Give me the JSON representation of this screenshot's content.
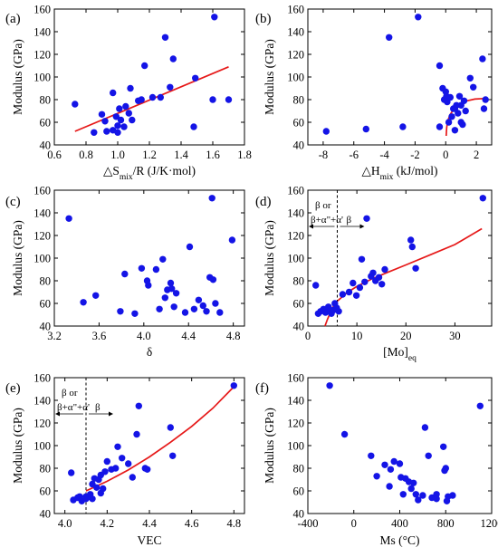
{
  "chart_data": [
    {
      "id": "a",
      "type": "scatter",
      "letter": "(a)",
      "xlabel": {
        "pre": "△S",
        "sub": "mix",
        "post": "/R (J/K·mol)"
      },
      "ylabel": "Modulus (GPa)",
      "xlim": [
        0.6,
        1.8
      ],
      "ylim": [
        40,
        160
      ],
      "xticks": [
        0.6,
        0.8,
        1.0,
        1.2,
        1.4,
        1.6,
        1.8
      ],
      "xtick_labels": [
        "0.6",
        "0.8",
        "1.0",
        "1.2",
        "1.4",
        "1.6",
        "1.8"
      ],
      "yticks": [
        40,
        60,
        80,
        100,
        120,
        140,
        160
      ],
      "ytick_labels": [
        "40",
        "60",
        "80",
        "100",
        "120",
        "140",
        "160"
      ],
      "points": [
        [
          0.73,
          76
        ],
        [
          0.85,
          51
        ],
        [
          0.9,
          67
        ],
        [
          0.92,
          61
        ],
        [
          0.93,
          52
        ],
        [
          0.97,
          86
        ],
        [
          0.97,
          53
        ],
        [
          0.99,
          65
        ],
        [
          1.0,
          57
        ],
        [
          1.0,
          51
        ],
        [
          1.01,
          72
        ],
        [
          1.02,
          62
        ],
        [
          1.04,
          56
        ],
        [
          1.05,
          74
        ],
        [
          1.07,
          68
        ],
        [
          1.08,
          90
        ],
        [
          1.09,
          62
        ],
        [
          1.13,
          79
        ],
        [
          1.15,
          80
        ],
        [
          1.17,
          110
        ],
        [
          1.22,
          82
        ],
        [
          1.27,
          82
        ],
        [
          1.3,
          135
        ],
        [
          1.33,
          91
        ],
        [
          1.35,
          116
        ],
        [
          1.48,
          56
        ],
        [
          1.49,
          99
        ],
        [
          1.6,
          80
        ],
        [
          1.61,
          153
        ],
        [
          1.7,
          80
        ]
      ],
      "fit": {
        "kind": "line",
        "points": [
          [
            0.73,
            52
          ],
          [
            1.7,
            109
          ]
        ]
      }
    },
    {
      "id": "b",
      "type": "scatter",
      "letter": "(b)",
      "xlabel": {
        "pre": "△H",
        "sub": "mix",
        "post": " (kJ/mol)"
      },
      "ylabel": "Modulus (GPa)",
      "xlim": [
        -9,
        3
      ],
      "ylim": [
        40,
        160
      ],
      "xticks": [
        -8,
        -6,
        -4,
        -2,
        0,
        2
      ],
      "xtick_labels": [
        "-8",
        "-6",
        "-4",
        "-2",
        "0",
        "2"
      ],
      "yticks": [
        40,
        60,
        80,
        100,
        120,
        140,
        160
      ],
      "ytick_labels": [
        "40",
        "60",
        "80",
        "100",
        "120",
        "140",
        "160"
      ],
      "points": [
        [
          -7.8,
          52
        ],
        [
          -5.2,
          54
        ],
        [
          -3.7,
          135
        ],
        [
          -2.8,
          56
        ],
        [
          -1.8,
          153
        ],
        [
          -0.4,
          56
        ],
        [
          -0.4,
          110
        ],
        [
          -0.2,
          90
        ],
        [
          -0.1,
          80
        ],
        [
          0,
          87
        ],
        [
          0.05,
          83
        ],
        [
          0.1,
          78
        ],
        [
          0.2,
          60
        ],
        [
          0.3,
          82
        ],
        [
          0.4,
          65
        ],
        [
          0.5,
          72
        ],
        [
          0.6,
          53
        ],
        [
          0.6,
          72
        ],
        [
          0.7,
          75
        ],
        [
          0.8,
          68
        ],
        [
          0.9,
          83
        ],
        [
          1.0,
          75
        ],
        [
          1.0,
          60
        ],
        [
          1.1,
          58
        ],
        [
          1.2,
          79
        ],
        [
          1.3,
          70
        ],
        [
          1.6,
          99
        ],
        [
          1.8,
          91
        ],
        [
          2.4,
          116
        ],
        [
          2.5,
          72
        ],
        [
          2.6,
          80
        ]
      ],
      "fit": {
        "kind": "curve",
        "points": [
          [
            0.03,
            48
          ],
          [
            0.06,
            55
          ],
          [
            0.12,
            61
          ],
          [
            0.3,
            67
          ],
          [
            0.55,
            72
          ],
          [
            0.9,
            76
          ],
          [
            1.4,
            79
          ],
          [
            1.9,
            80.5
          ],
          [
            2.5,
            81
          ]
        ]
      }
    },
    {
      "id": "c",
      "type": "scatter",
      "letter": "(c)",
      "xlabel": {
        "pre": "δ",
        "sub": "",
        "post": ""
      },
      "ylabel": "Modulus (GPa)",
      "xlim": [
        3.2,
        4.9
      ],
      "ylim": [
        40,
        160
      ],
      "xticks": [
        3.2,
        3.6,
        4.0,
        4.4,
        4.8
      ],
      "xtick_labels": [
        "3.2",
        "3.6",
        "4.0",
        "4.4",
        "4.8"
      ],
      "yticks": [
        40,
        60,
        80,
        100,
        120,
        140,
        160
      ],
      "ytick_labels": [
        "40",
        "60",
        "80",
        "100",
        "120",
        "140",
        "160"
      ],
      "points": [
        [
          3.33,
          135
        ],
        [
          3.46,
          61
        ],
        [
          3.57,
          67
        ],
        [
          3.79,
          53
        ],
        [
          3.83,
          86
        ],
        [
          3.92,
          51
        ],
        [
          3.98,
          91
        ],
        [
          4.03,
          80
        ],
        [
          4.04,
          76
        ],
        [
          4.11,
          90
        ],
        [
          4.14,
          55
        ],
        [
          4.17,
          99
        ],
        [
          4.19,
          65
        ],
        [
          4.21,
          72
        ],
        [
          4.24,
          78
        ],
        [
          4.25,
          73
        ],
        [
          4.27,
          57
        ],
        [
          4.29,
          69
        ],
        [
          4.37,
          52
        ],
        [
          4.41,
          110
        ],
        [
          4.45,
          55
        ],
        [
          4.49,
          63
        ],
        [
          4.53,
          58
        ],
        [
          4.56,
          53
        ],
        [
          4.59,
          83
        ],
        [
          4.61,
          153
        ],
        [
          4.62,
          81
        ],
        [
          4.64,
          60
        ],
        [
          4.68,
          52
        ],
        [
          4.79,
          116
        ]
      ]
    },
    {
      "id": "d",
      "type": "scatter",
      "letter": "(d)",
      "xlabel": {
        "pre": "[Mo]",
        "sub": "eq",
        "post": ""
      },
      "ylabel": "Modulus (GPa)",
      "xlim": [
        0,
        37.5
      ],
      "ylim": [
        40,
        160
      ],
      "xticks": [
        0,
        10,
        20,
        30
      ],
      "xtick_labels": [
        "0",
        "10",
        "20",
        "30"
      ],
      "yticks": [
        40,
        60,
        80,
        100,
        120,
        140,
        160
      ],
      "ytick_labels": [
        "40",
        "60",
        "80",
        "100",
        "120",
        "140",
        "160"
      ],
      "points": [
        [
          1.6,
          76
        ],
        [
          2.1,
          51
        ],
        [
          2.6,
          53
        ],
        [
          3.2,
          55
        ],
        [
          3.6,
          52
        ],
        [
          4.2,
          57
        ],
        [
          4.5,
          53
        ],
        [
          4.8,
          51
        ],
        [
          5.2,
          54
        ],
        [
          5.5,
          60
        ],
        [
          5.9,
          56
        ],
        [
          6.3,
          53
        ],
        [
          7.1,
          68
        ],
        [
          8.4,
          70
        ],
        [
          9.2,
          78
        ],
        [
          9.9,
          67
        ],
        [
          10.6,
          74
        ],
        [
          11.0,
          99
        ],
        [
          11.6,
          79
        ],
        [
          12.0,
          135
        ],
        [
          12.9,
          84
        ],
        [
          13.3,
          87
        ],
        [
          13.8,
          80
        ],
        [
          14.5,
          83
        ],
        [
          15.1,
          77
        ],
        [
          15.7,
          90
        ],
        [
          21.0,
          116
        ],
        [
          21.3,
          110
        ],
        [
          22.0,
          91
        ],
        [
          35.7,
          153
        ]
      ],
      "fit": {
        "kind": "curve",
        "points": [
          [
            3.5,
            40
          ],
          [
            4,
            46
          ],
          [
            5,
            56
          ],
          [
            6,
            62
          ],
          [
            8,
            69.5
          ],
          [
            10,
            75
          ],
          [
            13,
            81.5
          ],
          [
            16,
            87
          ],
          [
            20,
            94
          ],
          [
            25,
            103
          ],
          [
            30,
            112
          ],
          [
            35.5,
            126
          ]
        ]
      },
      "vline": 6.0,
      "annot_left": [
        "β or",
        "β+α\"+α'"
      ],
      "annot_right": "β"
    },
    {
      "id": "e",
      "type": "scatter",
      "letter": "(e)",
      "xlabel": {
        "pre": "VEC",
        "sub": "",
        "post": ""
      },
      "ylabel": "Modulus (GPa)",
      "xlim": [
        3.95,
        4.85
      ],
      "ylim": [
        40,
        160
      ],
      "xticks": [
        4.0,
        4.2,
        4.4,
        4.6,
        4.8
      ],
      "xtick_labels": [
        "4.0",
        "4.2",
        "4.4",
        "4.6",
        "4.8"
      ],
      "yticks": [
        40,
        60,
        80,
        100,
        120,
        140,
        160
      ],
      "ytick_labels": [
        "40",
        "60",
        "80",
        "100",
        "120",
        "140",
        "160"
      ],
      "points": [
        [
          4.03,
          76
        ],
        [
          4.04,
          52
        ],
        [
          4.06,
          54
        ],
        [
          4.07,
          55
        ],
        [
          4.08,
          51
        ],
        [
          4.1,
          53
        ],
        [
          4.1,
          55
        ],
        [
          4.12,
          57
        ],
        [
          4.13,
          53
        ],
        [
          4.13,
          66
        ],
        [
          4.14,
          71
        ],
        [
          4.15,
          63
        ],
        [
          4.16,
          70
        ],
        [
          4.17,
          74
        ],
        [
          4.17,
          58
        ],
        [
          4.18,
          62
        ],
        [
          4.19,
          77
        ],
        [
          4.2,
          86
        ],
        [
          4.22,
          79
        ],
        [
          4.24,
          80
        ],
        [
          4.25,
          99
        ],
        [
          4.27,
          89
        ],
        [
          4.3,
          84
        ],
        [
          4.32,
          72
        ],
        [
          4.34,
          110
        ],
        [
          4.35,
          135
        ],
        [
          4.38,
          80
        ],
        [
          4.39,
          79
        ],
        [
          4.5,
          116
        ],
        [
          4.51,
          91
        ],
        [
          4.8,
          153
        ]
      ],
      "fit": {
        "kind": "curve",
        "points": [
          [
            4.1,
            60
          ],
          [
            4.2,
            68.5
          ],
          [
            4.3,
            78.5
          ],
          [
            4.4,
            90
          ],
          [
            4.5,
            103
          ],
          [
            4.6,
            117
          ],
          [
            4.7,
            133
          ],
          [
            4.8,
            152
          ]
        ]
      },
      "vline": 4.1,
      "annot_left": [
        "β or",
        "β+α\"+α'"
      ],
      "annot_right": "β"
    },
    {
      "id": "f",
      "type": "scatter",
      "letter": "(f)",
      "xlabel": {
        "pre": "Ms (°C)",
        "sub": "",
        "post": ""
      },
      "ylabel": "Modulus (GPa)",
      "xlim": [
        -400,
        1200
      ],
      "ylim": [
        40,
        160
      ],
      "xticks": [
        -400,
        0,
        400,
        800,
        1200
      ],
      "xtick_labels": [
        "-400",
        "0",
        "400",
        "800",
        "1200"
      ],
      "yticks": [
        40,
        60,
        80,
        100,
        120,
        140,
        160
      ],
      "ytick_labels": [
        "40",
        "60",
        "80",
        "100",
        "120",
        "140",
        "160"
      ],
      "points": [
        [
          -210,
          153
        ],
        [
          -80,
          110
        ],
        [
          150,
          91
        ],
        [
          200,
          73
        ],
        [
          270,
          83
        ],
        [
          310,
          64
        ],
        [
          320,
          79
        ],
        [
          350,
          86
        ],
        [
          400,
          84
        ],
        [
          410,
          72
        ],
        [
          430,
          57
        ],
        [
          450,
          71
        ],
        [
          480,
          68
        ],
        [
          500,
          62
        ],
        [
          520,
          67
        ],
        [
          540,
          57
        ],
        [
          560,
          52
        ],
        [
          600,
          56
        ],
        [
          620,
          116
        ],
        [
          650,
          91
        ],
        [
          680,
          54
        ],
        [
          720,
          53
        ],
        [
          720,
          57
        ],
        [
          780,
          99
        ],
        [
          790,
          78
        ],
        [
          800,
          80
        ],
        [
          810,
          51
        ],
        [
          820,
          55
        ],
        [
          860,
          56
        ],
        [
          1100,
          135
        ]
      ]
    }
  ]
}
